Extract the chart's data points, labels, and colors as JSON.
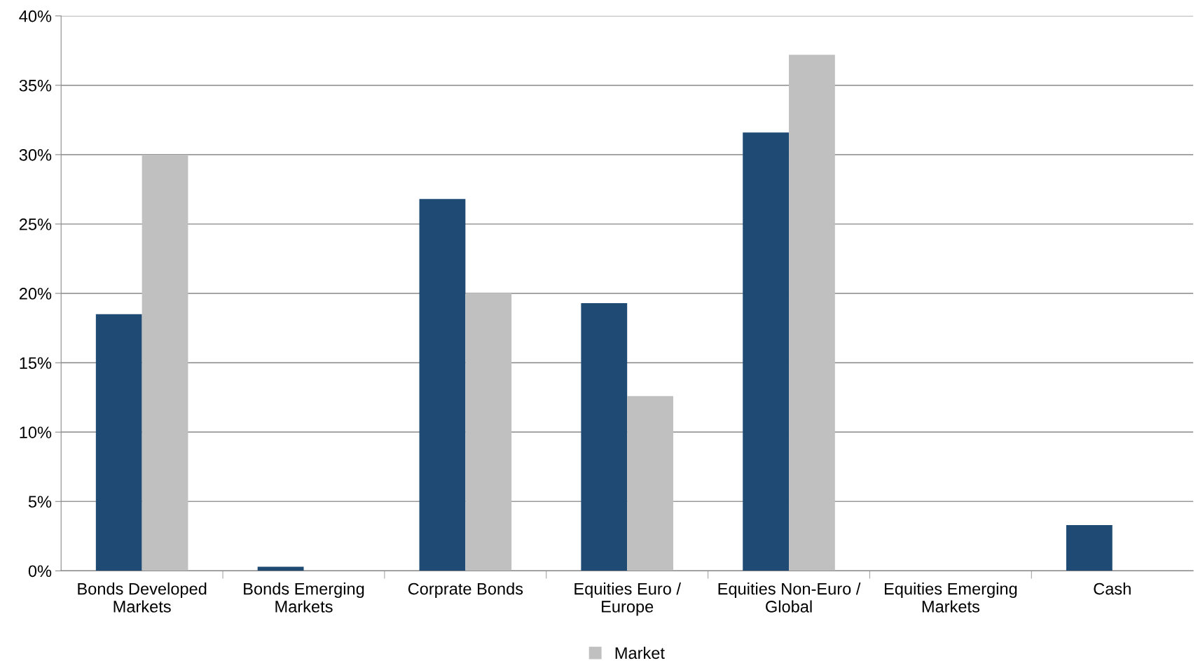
{
  "chart_data": {
    "type": "bar",
    "categories": [
      "Bonds Developed\nMarkets",
      "Bonds Emerging\nMarkets",
      "Corprate Bonds",
      "Equities Euro /\nEurope",
      "Equities Non-Euro /\nGlobal",
      "Equities Emerging\nMarkets",
      "Cash"
    ],
    "series": [
      {
        "color": "#1f4a73",
        "values": [
          18.5,
          0.3,
          26.8,
          19.3,
          31.6,
          0,
          3.3
        ]
      },
      {
        "name": "Market",
        "color": "#c0c0c0",
        "values": [
          30.0,
          0,
          20.0,
          12.6,
          37.2,
          0,
          0
        ]
      }
    ],
    "ylim": [
      0,
      40
    ],
    "yticks": [
      {
        "value": 0,
        "label": "0%"
      },
      {
        "value": 5,
        "label": "5%"
      },
      {
        "value": 10,
        "label": "10%"
      },
      {
        "value": 15,
        "label": "15%"
      },
      {
        "value": 20,
        "label": "20%"
      },
      {
        "value": 25,
        "label": "25%"
      },
      {
        "value": 30,
        "label": "30%"
      },
      {
        "value": 35,
        "label": "35%"
      },
      {
        "value": 40,
        "label": "40%"
      }
    ],
    "grid": "y",
    "legend": "bottom"
  }
}
